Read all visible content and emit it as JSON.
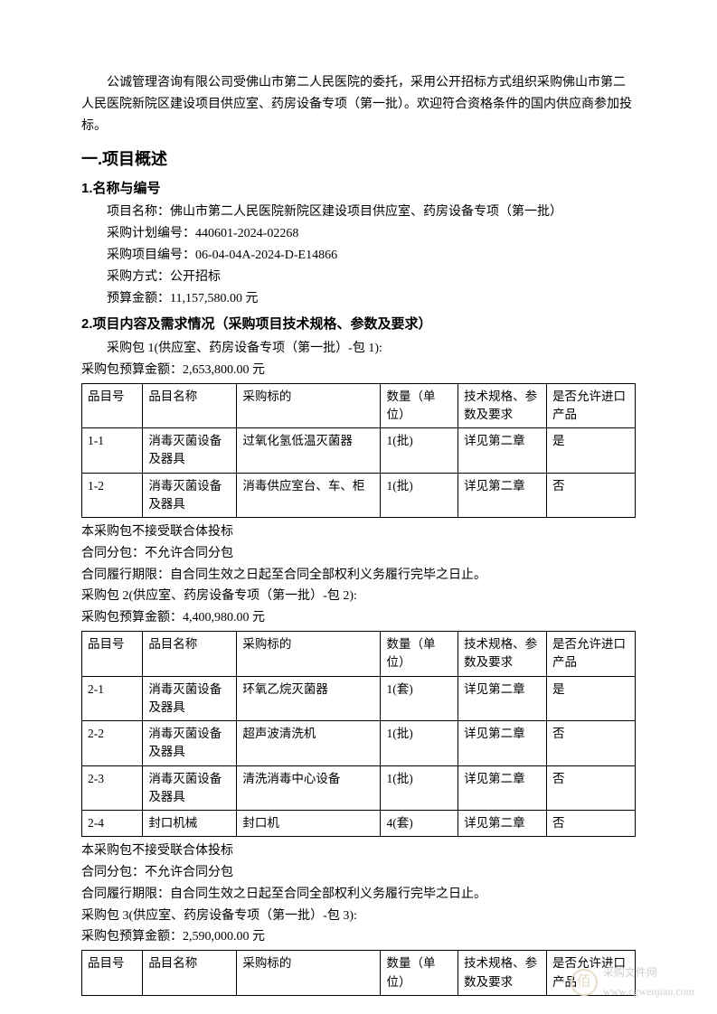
{
  "intro": "公诚管理咨询有限公司受佛山市第二人民医院的委托，采用公开招标方式组织采购佛山市第二人民医院新院区建设项目供应室、药房设备专项（第一批）。欢迎符合资格条件的国内供应商参加投标。",
  "section1": {
    "title": "一.项目概述",
    "sub1": {
      "title": "1.名称与编号",
      "lines": [
        "项目名称：佛山市第二人民医院新院区建设项目供应室、药房设备专项（第一批）",
        "采购计划编号：440601-2024-02268",
        "采购项目编号：06-04-04A-2024-D-E14866",
        "采购方式：公开招标",
        "预算金额：11,157,580.00 元"
      ]
    },
    "sub2": {
      "title": "2.项目内容及需求情况（采购项目技术规格、参数及要求）"
    }
  },
  "table_headers": [
    "品目号",
    "品目名称",
    "采购标的",
    "数量（单位）",
    "技术规格、参数及要求",
    "是否允许进口产品"
  ],
  "package1": {
    "title": "采购包 1(供应室、药房设备专项（第一批）-包 1):",
    "budget": "采购包预算金额：2,653,800.00 元",
    "rows": [
      [
        "1-1",
        "消毒灭菌设备及器具",
        "过氧化氢低温灭菌器",
        "1(批)",
        "详见第二章",
        "是"
      ],
      [
        "1-2",
        "消毒灭菌设备及器具",
        "消毒供应室台、车、柜",
        "1(批)",
        "详见第二章",
        "否"
      ]
    ],
    "notes": [
      "本采购包不接受联合体投标",
      "合同分包：不允许合同分包",
      "合同履行期限：自合同生效之日起至合同全部权利义务履行完毕之日止。"
    ]
  },
  "package2": {
    "title": "采购包 2(供应室、药房设备专项（第一批）-包 2):",
    "budget": "采购包预算金额：4,400,980.00 元",
    "rows": [
      [
        "2-1",
        "消毒灭菌设备及器具",
        "环氧乙烷灭菌器",
        "1(套)",
        "详见第二章",
        "是"
      ],
      [
        "2-2",
        "消毒灭菌设备及器具",
        "超声波清洗机",
        "1(批)",
        "详见第二章",
        "否"
      ],
      [
        "2-3",
        "消毒灭菌设备及器具",
        "清洗消毒中心设备",
        "1(批)",
        "详见第二章",
        "否"
      ],
      [
        "2-4",
        "封口机械",
        "封口机",
        "4(套)",
        "详见第二章",
        "否"
      ]
    ],
    "notes": [
      "本采购包不接受联合体投标",
      "合同分包：不允许合同分包",
      "合同履行期限：自合同生效之日起至合同全部权利义务履行完毕之日止。"
    ]
  },
  "package3": {
    "title": "采购包 3(供应室、药房设备专项（第一批）-包 3):",
    "budget": "采购包预算金额：2,590,000.00 元",
    "rows": []
  },
  "watermark": {
    "icon": "佰",
    "text1": "采购文件网",
    "text2": "www.cgwenjian.com"
  },
  "styling": {
    "page_bg": "#ffffff",
    "text_color": "#000000",
    "border_color": "#000000",
    "body_fontsize": 14,
    "h1_fontsize": 18,
    "h2_fontsize": 15,
    "cell_fontsize": 13.5,
    "watermark_color": "#d0d0d0",
    "watermark_icon_color": "#e5ddc8",
    "col_widths_pct": [
      11,
      17,
      26,
      14,
      16,
      16
    ]
  }
}
